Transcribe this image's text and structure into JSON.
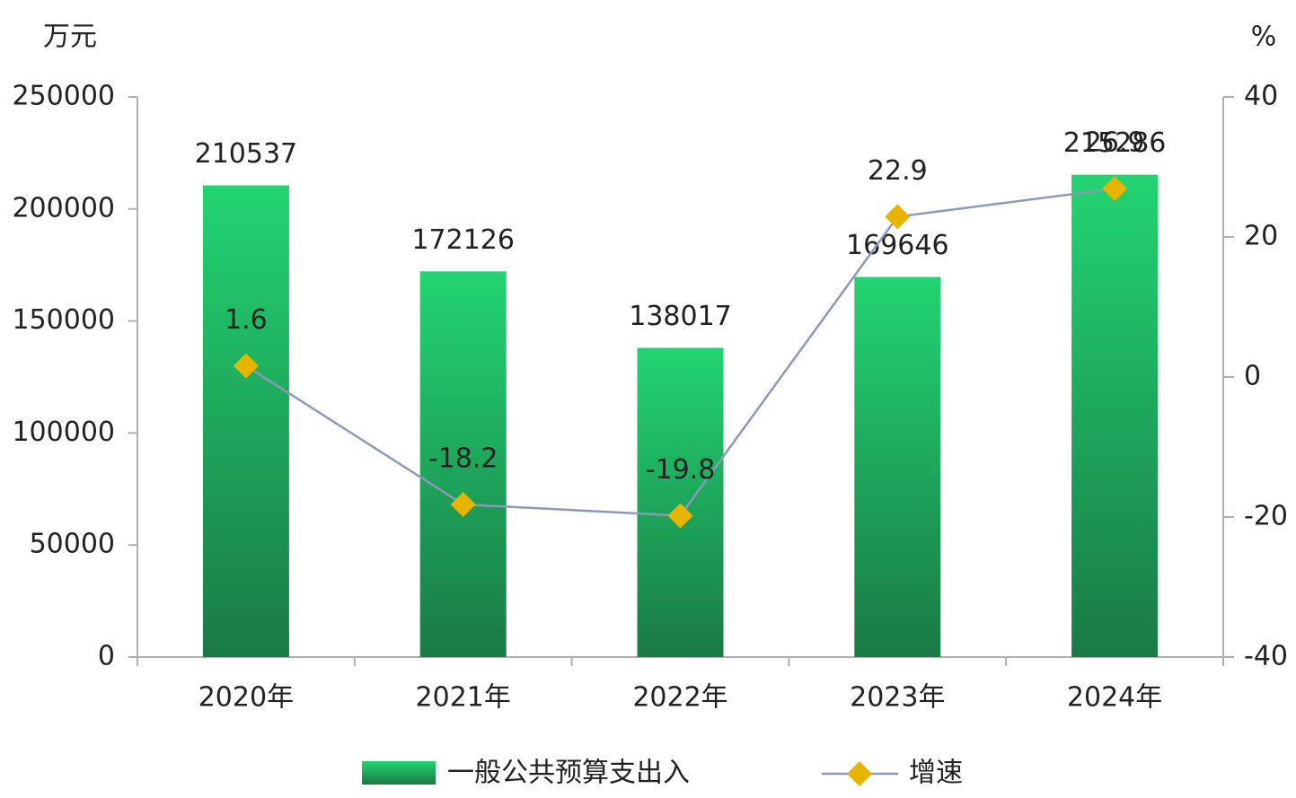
{
  "chart_data": {
    "type": "bar",
    "y_axis_title": "万元",
    "y2_axis_title": "%",
    "categories": [
      "2020年",
      "2021年",
      "2022年",
      "2023年",
      "2024年"
    ],
    "series": [
      {
        "name": "一般公共预算支出入",
        "type": "bar",
        "color": "#1a7a45",
        "values": [
          210537,
          172126,
          138017,
          169646,
          215286
        ]
      },
      {
        "name": "增速",
        "type": "line",
        "axis": "y2",
        "color": "#8a9ab8",
        "marker_color": "#e8b400",
        "values": [
          1.6,
          -18.2,
          -19.8,
          22.9,
          26.9
        ]
      }
    ],
    "ylim": [
      0,
      250000
    ],
    "yticks": [
      0,
      50000,
      100000,
      150000,
      200000,
      250000
    ],
    "y2lim": [
      -40,
      40
    ],
    "y2ticks": [
      -40,
      -20,
      0,
      20,
      40
    ],
    "legend": "bottom"
  }
}
